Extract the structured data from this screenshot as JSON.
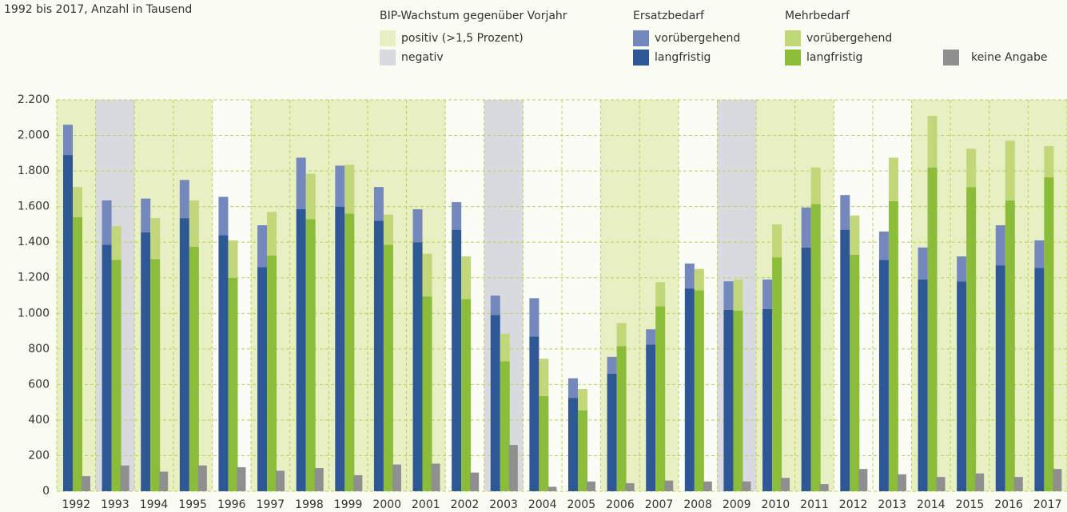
{
  "chart_data": {
    "type": "stacked-grouped-bar",
    "subtitle": "1992 bis 2017, Anzahl in Tausend",
    "categories": [
      "1992",
      "1993",
      "1994",
      "1995",
      "1996",
      "1997",
      "1998",
      "1999",
      "2000",
      "2001",
      "2002",
      "2003",
      "2004",
      "2005",
      "2006",
      "2007",
      "2008",
      "2009",
      "2010",
      "2011",
      "2012",
      "2013",
      "2014",
      "2015",
      "2016",
      "2017"
    ],
    "band_legend": {
      "title": "BIP-Wachstum gegenüber Vorjahr",
      "items": [
        {
          "name": "positiv (>1,5 Prozent)",
          "color": "#e7efc3"
        },
        {
          "name": "negativ",
          "color": "#d9dadf"
        }
      ]
    },
    "bands": [
      "#e7efc3",
      "#d9dadf",
      "#e7efc3",
      "#e7efc3",
      null,
      "#e7efc3",
      "#e7efc3",
      "#e7efc3",
      "#e7efc3",
      "#e7efc3",
      null,
      "#d9dadf",
      null,
      null,
      "#e7efc3",
      "#e7efc3",
      null,
      "#d9dadf",
      "#e7efc3",
      "#e7efc3",
      null,
      null,
      "#e7efc3",
      "#e7efc3",
      "#e7efc3",
      "#e7efc3"
    ],
    "stacks": [
      {
        "name": "Ersatzbedarf",
        "series": [
          {
            "name": "langfristig",
            "color": "#2e5796",
            "values": [
              1890,
              1385,
              1455,
              1535,
              1440,
              1260,
              1585,
              1600,
              1520,
              1400,
              1470,
              990,
              870,
              525,
              660,
              825,
              1140,
              1020,
              1025,
              1370,
              1470,
              1300,
              1190,
              1180,
              1270,
              1255
            ]
          },
          {
            "name": "vorübergehend",
            "color": "#7588bd",
            "values": [
              170,
              250,
              190,
              215,
              215,
              235,
              290,
              230,
              190,
              185,
              155,
              110,
              215,
              110,
              95,
              85,
              140,
              160,
              165,
              225,
              195,
              160,
              180,
              140,
              225,
              155
            ]
          }
        ]
      },
      {
        "name": "Mehrbedarf",
        "series": [
          {
            "name": "langfristig",
            "color": "#8bbd3a",
            "values": [
              1540,
              1300,
              1305,
              1375,
              1200,
              1325,
              1530,
              1560,
              1385,
              1095,
              1080,
              730,
              535,
              455,
              815,
              1040,
              1130,
              1015,
              1315,
              1615,
              1330,
              1630,
              1820,
              1710,
              1635,
              1765
            ]
          },
          {
            "name": "vorübergehend",
            "color": "#c1d77a",
            "values": [
              170,
              190,
              230,
              260,
              210,
              245,
              255,
              275,
              170,
              240,
              240,
              155,
              210,
              120,
              130,
              135,
              120,
              175,
              185,
              205,
              220,
              245,
              290,
              215,
              335,
              175
            ]
          }
        ]
      },
      {
        "series": [
          {
            "name": "keine Angabe",
            "color": "#8f8f8f",
            "values": [
              85,
              145,
              110,
              145,
              135,
              115,
              130,
              90,
              150,
              155,
              105,
              260,
              25,
              55,
              45,
              60,
              55,
              55,
              75,
              40,
              125,
              95,
              80,
              100,
              80,
              125
            ]
          }
        ]
      }
    ],
    "ylim": [
      0,
      2200
    ],
    "yticks": [
      0,
      200,
      400,
      600,
      800,
      {
        "value": 1000,
        "label": "1.000"
      },
      {
        "value": 1200,
        "label": "1.200"
      },
      {
        "value": 1400,
        "label": "1.400"
      },
      {
        "value": 1600,
        "label": "1.600"
      },
      {
        "value": 1800,
        "label": "1.800"
      },
      {
        "value": 2000,
        "label": "2.000"
      },
      {
        "value": 2200,
        "label": "2.200"
      }
    ],
    "grid": true
  }
}
